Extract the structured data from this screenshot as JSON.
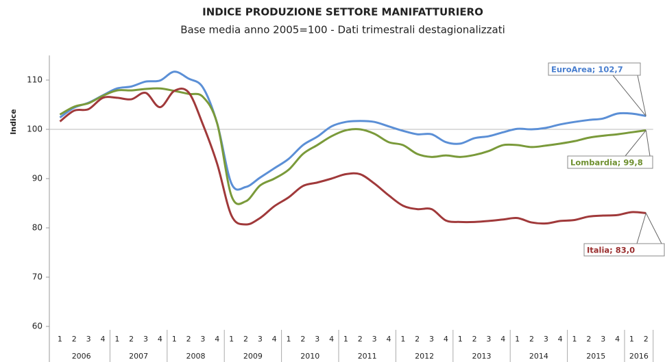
{
  "chart_data": {
    "type": "line",
    "title": "INDICE PRODUZIONE SETTORE MANIFATTURIERO",
    "subtitle": "Base media anno 2005=100 - Dati trimestrali destagionalizzati",
    "y_label": "Indice",
    "categories": [
      "1",
      "2",
      "3",
      "4",
      "1",
      "2",
      "3",
      "4",
      "1",
      "2",
      "3",
      "4",
      "1",
      "2",
      "3",
      "4",
      "1",
      "2",
      "3",
      "4",
      "1",
      "2",
      "3",
      "4",
      "1",
      "2",
      "3",
      "4",
      "1",
      "2",
      "3",
      "4",
      "1",
      "2",
      "3",
      "4",
      "1",
      "2",
      "3",
      "4",
      "1",
      "2"
    ],
    "years": [
      "2006",
      "2007",
      "2008",
      "2009",
      "2010",
      "2011",
      "2012",
      "2013",
      "2014",
      "2015",
      "2016"
    ],
    "ylim": [
      60,
      115
    ],
    "yticks": [
      60,
      70,
      80,
      90,
      100,
      110
    ],
    "grid": false,
    "reference_line": 100,
    "series": [
      {
        "label": "EuroArea; 102,7",
        "color": "#5b8fd6",
        "label_color": "#4a7fcf",
        "values": [
          102.4,
          104.4,
          105.4,
          106.9,
          108.3,
          108.7,
          109.7,
          109.9,
          111.7,
          110.3,
          108.5,
          101.2,
          89.0,
          88.3,
          90.2,
          92.1,
          94.0,
          96.8,
          98.5,
          100.6,
          101.5,
          101.7,
          101.5,
          100.6,
          99.7,
          99.0,
          99.0,
          97.4,
          97.1,
          98.2,
          98.6,
          99.4,
          100.1,
          100.0,
          100.3,
          101.0,
          101.5,
          101.9,
          102.2,
          103.2,
          103.2,
          102.7
        ]
      },
      {
        "label": "Lombardia; 99,8",
        "color": "#7a9a3a",
        "label_color": "#6f9030",
        "values": [
          103.0,
          104.6,
          105.3,
          106.8,
          107.9,
          107.9,
          108.2,
          108.3,
          107.8,
          107.2,
          106.6,
          101.2,
          86.5,
          85.4,
          88.6,
          90.0,
          91.8,
          95.0,
          96.8,
          98.6,
          99.8,
          100.0,
          99.1,
          97.4,
          96.8,
          95.0,
          94.4,
          94.7,
          94.4,
          94.8,
          95.6,
          96.8,
          96.8,
          96.4,
          96.7,
          97.1,
          97.6,
          98.3,
          98.7,
          99.0,
          99.4,
          99.8
        ]
      },
      {
        "label": "Italia; 83,0",
        "color": "#a0393a",
        "label_color": "#9a2f2f",
        "values": [
          101.6,
          103.8,
          104.1,
          106.4,
          106.4,
          106.1,
          107.4,
          104.5,
          107.8,
          107.5,
          101.0,
          93.0,
          82.5,
          80.7,
          82.0,
          84.4,
          86.2,
          88.5,
          89.2,
          90.0,
          90.9,
          90.9,
          89.0,
          86.6,
          84.5,
          83.8,
          83.8,
          81.5,
          81.2,
          81.2,
          81.4,
          81.7,
          82.0,
          81.1,
          80.9,
          81.4,
          81.6,
          82.3,
          82.5,
          82.6,
          83.2,
          83.0
        ]
      }
    ]
  }
}
